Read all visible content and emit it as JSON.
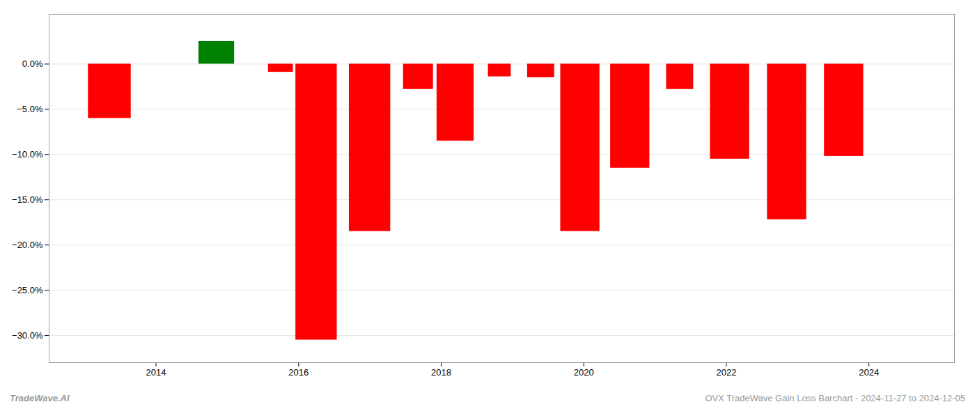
{
  "chart_data": {
    "type": "bar",
    "x": [
      2013.35,
      2014.85,
      2015.75,
      2016.25,
      2017.0,
      2017.68,
      2018.2,
      2018.82,
      2019.4,
      2019.95,
      2020.65,
      2021.35,
      2022.05,
      2022.85,
      2023.65
    ],
    "values": [
      -6.0,
      2.5,
      -0.9,
      -30.5,
      -18.5,
      -2.8,
      -8.5,
      -1.4,
      -1.5,
      -18.5,
      -11.5,
      -2.8,
      -10.5,
      -17.2,
      -10.2
    ],
    "widths": [
      0.6,
      0.5,
      0.35,
      0.58,
      0.58,
      0.42,
      0.52,
      0.32,
      0.38,
      0.55,
      0.55,
      0.38,
      0.55,
      0.55,
      0.55
    ],
    "colors": [
      "#ff0000",
      "#008000",
      "#ff0000",
      "#ff0000",
      "#ff0000",
      "#ff0000",
      "#ff0000",
      "#ff0000",
      "#ff0000",
      "#ff0000",
      "#ff0000",
      "#ff0000",
      "#ff0000",
      "#ff0000",
      "#ff0000"
    ],
    "xlim": [
      2012.5,
      2025.2
    ],
    "xticks": [
      2014,
      2016,
      2018,
      2020,
      2022,
      2024
    ],
    "ylim": [
      -33,
      5.5
    ],
    "yticks": [
      {
        "value": 0.0,
        "label": "0.0%"
      },
      {
        "value": -5.0,
        "label": "−5.0%"
      },
      {
        "value": -10.0,
        "label": "−10.0%"
      },
      {
        "value": -15.0,
        "label": "−15.0%"
      },
      {
        "value": -20.0,
        "label": "−20.0%"
      },
      {
        "value": -25.0,
        "label": "−25.0%"
      },
      {
        "value": -30.0,
        "label": "−30.0%"
      }
    ],
    "grid": true,
    "annotations": [
      "TradeWave.AI",
      "OVX TradeWave Gain Loss Barchart - 2024-11-27 to 2024-12-05"
    ]
  }
}
